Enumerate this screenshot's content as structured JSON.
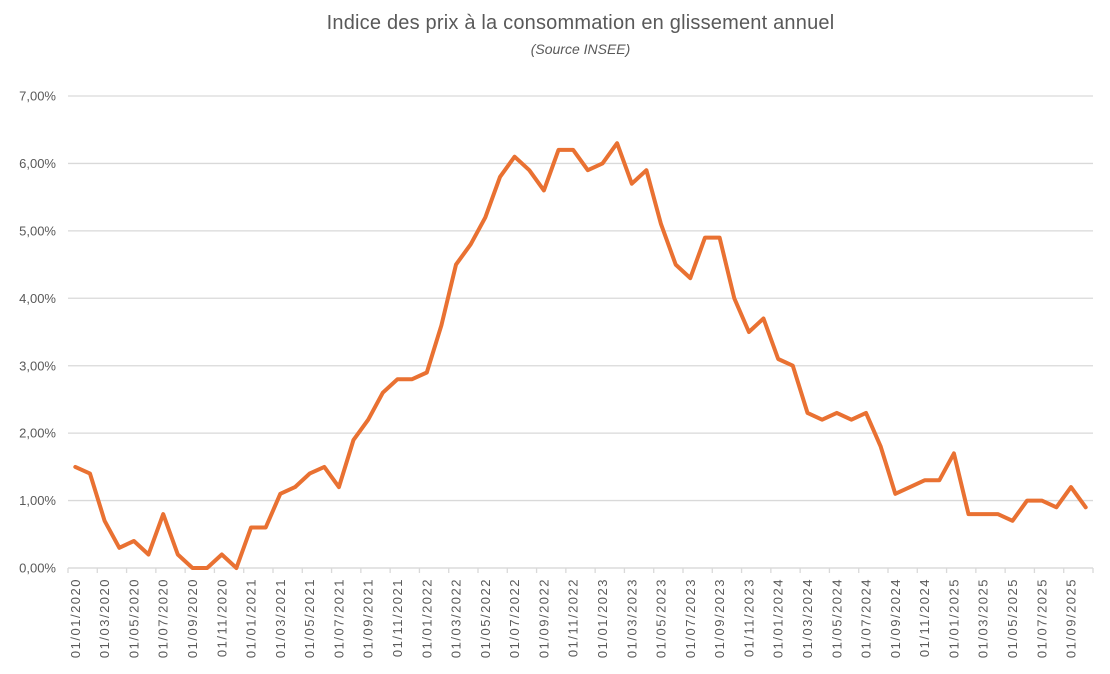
{
  "chart": {
    "title": "Indice des prix à la consommation en glissement annuel",
    "subtitle": "(Source INSEE)"
  },
  "chart_data": {
    "type": "line",
    "title": "Indice des prix à la consommation en glissement annuel",
    "subtitle": "(Source INSEE)",
    "x": [
      "01/01/2020",
      "01/02/2020",
      "01/03/2020",
      "01/04/2020",
      "01/05/2020",
      "01/06/2020",
      "01/07/2020",
      "01/08/2020",
      "01/09/2020",
      "01/10/2020",
      "01/11/2020",
      "01/12/2020",
      "01/01/2021",
      "01/02/2021",
      "01/03/2021",
      "01/04/2021",
      "01/05/2021",
      "01/06/2021",
      "01/07/2021",
      "01/08/2021",
      "01/09/2021",
      "01/10/2021",
      "01/11/2021",
      "01/12/2021",
      "01/01/2022",
      "01/02/2022",
      "01/03/2022",
      "01/04/2022",
      "01/05/2022",
      "01/06/2022",
      "01/07/2022",
      "01/08/2022",
      "01/09/2022",
      "01/10/2022",
      "01/11/2022",
      "01/12/2022",
      "01/01/2023",
      "01/02/2023",
      "01/03/2023",
      "01/04/2023",
      "01/05/2023",
      "01/06/2023",
      "01/07/2023",
      "01/08/2023",
      "01/09/2023",
      "01/10/2023",
      "01/11/2023",
      "01/12/2023",
      "01/01/2024",
      "01/02/2024",
      "01/03/2024",
      "01/04/2024",
      "01/05/2024",
      "01/06/2024",
      "01/07/2024",
      "01/08/2024",
      "01/09/2024",
      "01/10/2024",
      "01/11/2024",
      "01/12/2024",
      "01/01/2025",
      "01/02/2025",
      "01/03/2025",
      "01/04/2025",
      "01/05/2025",
      "01/06/2025",
      "01/07/2025",
      "01/08/2025",
      "01/09/2025",
      "01/10/2025"
    ],
    "values": [
      1.5,
      1.4,
      0.7,
      0.3,
      0.4,
      0.2,
      0.8,
      0.2,
      0.0,
      0.0,
      0.2,
      0.0,
      0.6,
      0.6,
      1.1,
      1.2,
      1.4,
      1.5,
      1.2,
      1.9,
      2.2,
      2.6,
      2.8,
      2.8,
      2.9,
      3.6,
      4.5,
      4.8,
      5.2,
      5.8,
      6.1,
      5.9,
      5.6,
      6.2,
      6.2,
      5.9,
      6.0,
      6.3,
      5.7,
      5.9,
      5.1,
      4.5,
      4.3,
      4.9,
      4.9,
      4.0,
      3.5,
      3.7,
      3.1,
      3.0,
      2.3,
      2.2,
      2.3,
      2.2,
      2.3,
      1.8,
      1.1,
      1.2,
      1.3,
      1.3,
      1.7,
      0.8,
      0.8,
      0.8,
      0.7,
      1.0,
      1.0,
      0.9,
      1.2,
      0.9
    ],
    "x_tick_step": 2,
    "y_ticks": [
      "0,00%",
      "1,00%",
      "2,00%",
      "3,00%",
      "4,00%",
      "5,00%",
      "6,00%",
      "7,00%"
    ],
    "ylim": [
      0,
      7
    ],
    "grid": true,
    "legend": "none",
    "line_color": "#E97132",
    "grid_color": "#D9D9D9",
    "label_color": "#595959"
  }
}
